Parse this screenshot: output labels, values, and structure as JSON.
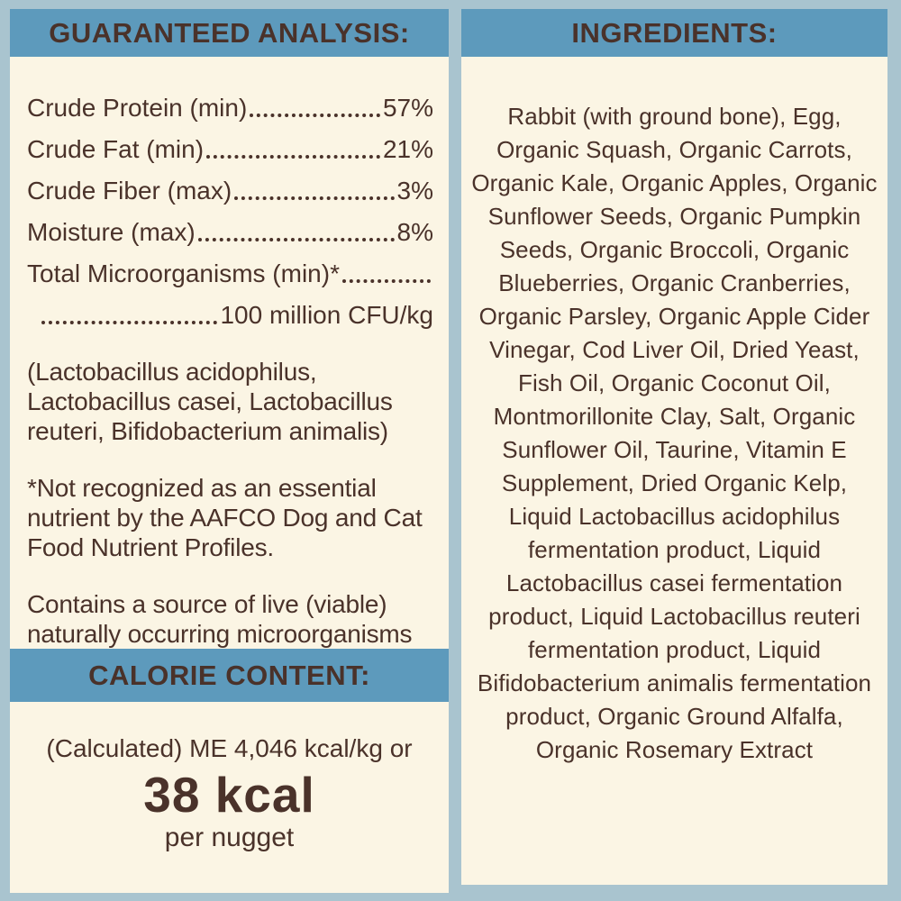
{
  "colors": {
    "page_blue": "#a9c4cf",
    "band_blue": "#5d9abc",
    "panel_cream": "#fbf5e4",
    "text_brown": "#4a322a"
  },
  "guaranteed_analysis": {
    "title": "GUARANTEED ANALYSIS:",
    "rows": [
      {
        "label": "Crude Protein (min)",
        "value": "57%"
      },
      {
        "label": "Crude Fat (min)",
        "value": "21%"
      },
      {
        "label": "Crude Fiber (max)",
        "value": "3%"
      },
      {
        "label": "Moisture (max)",
        "value": "8%"
      }
    ],
    "microorganisms": {
      "label": "Total Microorganisms (min)*",
      "value": "100 million CFU/kg"
    },
    "paragraphs": [
      "(Lactobacillus acidophilus, Lactobacillus casei, Lactobacillus reuteri, Bifidobacterium animalis)",
      "*Not recognized as an essential nutrient by the AAFCO Dog and Cat Food Nutrient Profiles.",
      "Contains a source of live (viable) naturally occurring microorganisms"
    ]
  },
  "calorie_content": {
    "title": "CALORIE CONTENT:",
    "line1": "(Calculated) ME 4,046 kcal/kg or",
    "value": "38 kcal",
    "unit": "per nugget"
  },
  "ingredients": {
    "title": "INGREDIENTS:",
    "text": "Rabbit (with ground bone), Egg, Organic Squash, Organic Carrots, Organic Kale, Organic Apples, Organic Sunflower Seeds, Organic Pumpkin Seeds, Organic Broccoli, Organic Blueberries, Organic Cranberries, Organic Parsley, Organic Apple Cider Vinegar, Cod Liver Oil, Dried Yeast, Fish Oil, Organic Coconut Oil, Montmorillonite Clay, Salt, Organic Sunflower Oil, Taurine, Vitamin E Supplement, Dried Organic Kelp, Liquid Lactobacillus acidophilus fermentation product, Liquid Lactobacillus casei fermentation product, Liquid Lactobacillus reuteri fermentation product, Liquid Bifidobacterium animalis fermentation product, Organic Ground Alfalfa, Organic Rosemary Extract"
  }
}
